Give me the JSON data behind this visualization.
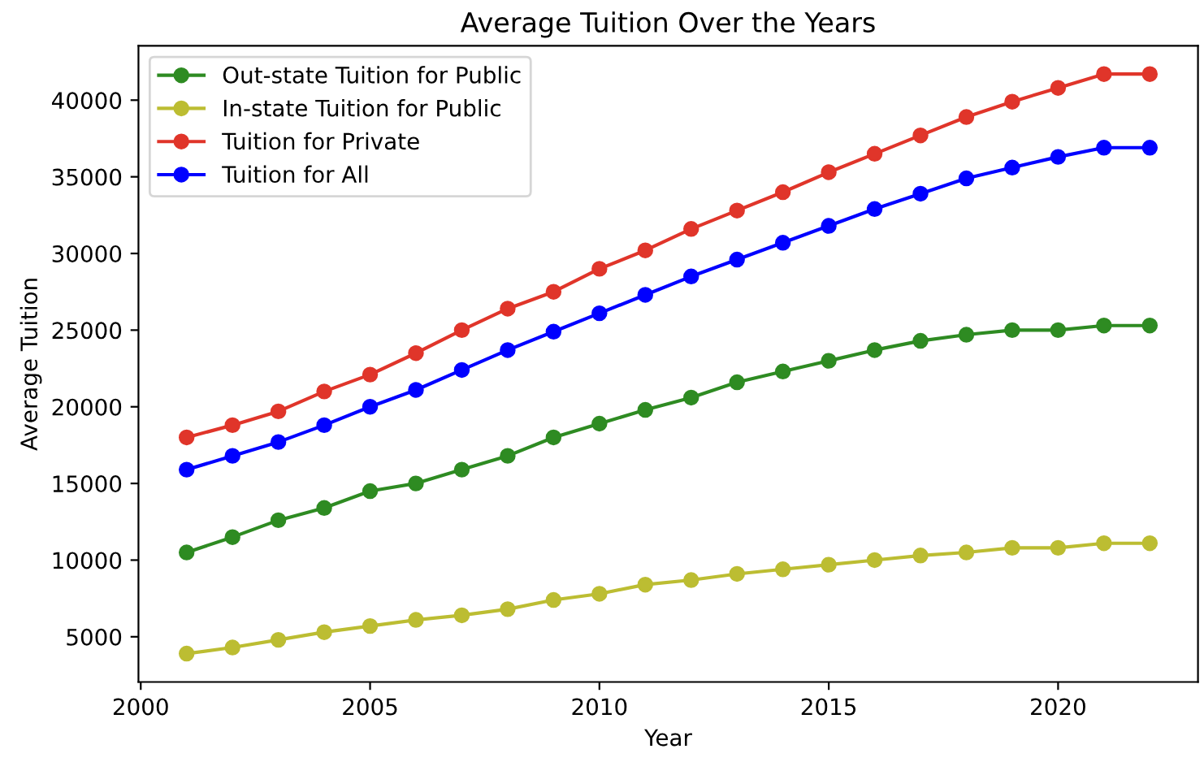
{
  "chart_data": {
    "type": "line",
    "title": "Average Tuition Over the Years",
    "xlabel": "Year",
    "ylabel": "Average Tuition",
    "x": [
      2001,
      2002,
      2003,
      2004,
      2005,
      2006,
      2007,
      2008,
      2009,
      2010,
      2011,
      2012,
      2013,
      2014,
      2015,
      2016,
      2017,
      2018,
      2019,
      2020,
      2021,
      2022
    ],
    "series": [
      {
        "name": "Out-state Tuition for Public",
        "color": "#2e8b22",
        "values": [
          10500,
          11500,
          12600,
          13400,
          14500,
          15000,
          15900,
          16800,
          18000,
          18900,
          19800,
          20600,
          21600,
          22300,
          23000,
          23700,
          24300,
          24700,
          25000,
          25000,
          25300,
          25300
        ]
      },
      {
        "name": "In-state Tuition for Public",
        "color": "#bcbd32",
        "values": [
          3900,
          4300,
          4800,
          5300,
          5700,
          6100,
          6400,
          6800,
          7400,
          7800,
          8400,
          8700,
          9100,
          9400,
          9700,
          10000,
          10300,
          10500,
          10800,
          10800,
          11100,
          11100
        ]
      },
      {
        "name": "Tuition for Private",
        "color": "#e0352a",
        "values": [
          18000,
          18800,
          19700,
          21000,
          22100,
          23500,
          25000,
          26400,
          27500,
          29000,
          30200,
          31600,
          32800,
          34000,
          35300,
          36500,
          37700,
          38900,
          39900,
          40800,
          41700,
          41700
        ]
      },
      {
        "name": "Tuition for All",
        "color": "#0000ff",
        "values": [
          15900,
          16800,
          17700,
          18800,
          20000,
          21100,
          22400,
          23700,
          24900,
          26100,
          27300,
          28500,
          29600,
          30700,
          31800,
          32900,
          33900,
          34900,
          35600,
          36300,
          36900,
          36900
        ]
      }
    ],
    "xlim": [
      1999.95,
      2023.05
    ],
    "xticks": [
      2000,
      2005,
      2010,
      2015,
      2020
    ],
    "ylim": [
      2050,
      43550
    ],
    "yticks": [
      5000,
      10000,
      15000,
      20000,
      25000,
      30000,
      35000,
      40000
    ],
    "grid": false,
    "legend": "top left",
    "marker": "circle",
    "line_style": "solid"
  }
}
